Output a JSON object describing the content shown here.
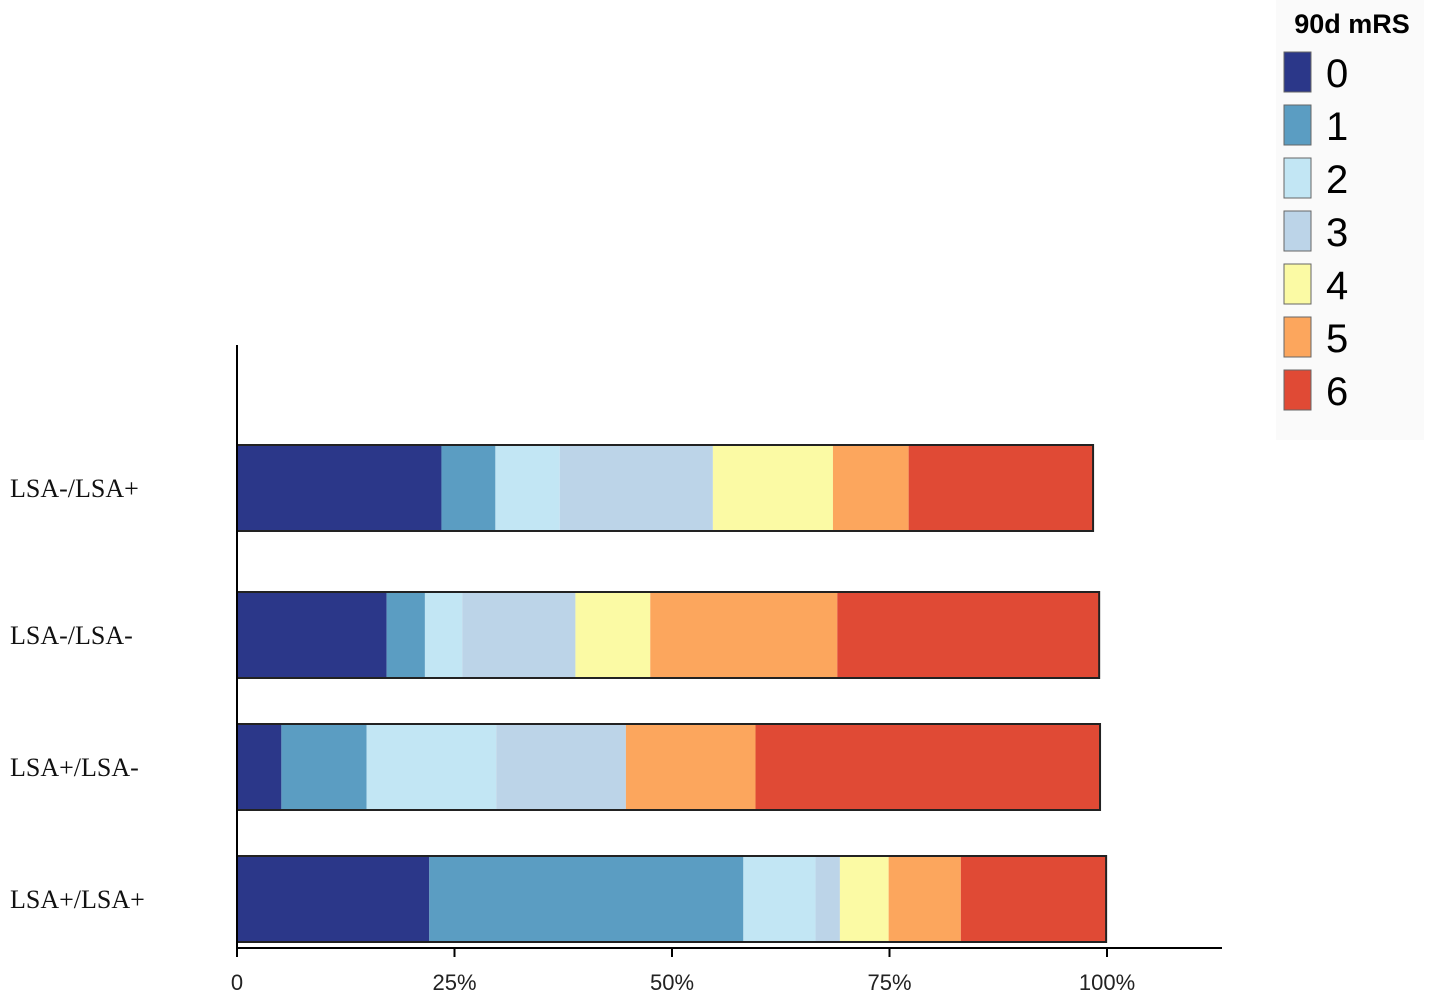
{
  "chart_data": {
    "type": "bar",
    "orientation": "horizontal",
    "stacked": true,
    "categories": [
      "LSA-/LSA+",
      "LSA-/LSA-",
      "LSA+/LSA-",
      "LSA+/LSA+"
    ],
    "x_ticks": [
      "0",
      "25%",
      "50%",
      "75%",
      "100%"
    ],
    "xlim": [
      0,
      100
    ],
    "grid": false,
    "legend": {
      "title": "90d mRS",
      "position": "top-right",
      "entries": [
        "0",
        "1",
        "2",
        "3",
        "4",
        "5",
        "6"
      ]
    },
    "colors": [
      "#2b3789",
      "#5b9dc2",
      "#c2e6f4",
      "#bcd4e8",
      "#fbfaa4",
      "#fca65d",
      "#e04a35"
    ],
    "series": [
      {
        "name": "0",
        "values": [
          23.5,
          17.2,
          5.1,
          22.1
        ]
      },
      {
        "name": "1",
        "values": [
          6.2,
          4.4,
          9.8,
          36.1
        ]
      },
      {
        "name": "2",
        "values": [
          7.4,
          4.3,
          14.9,
          8.3
        ]
      },
      {
        "name": "3",
        "values": [
          17.6,
          13.0,
          14.9,
          2.8
        ]
      },
      {
        "name": "4",
        "values": [
          13.8,
          8.6,
          0.0,
          5.6
        ]
      },
      {
        "name": "5",
        "values": [
          8.7,
          21.5,
          14.9,
          8.3
        ]
      },
      {
        "name": "6",
        "values": [
          21.2,
          30.1,
          39.6,
          16.7
        ]
      }
    ]
  }
}
